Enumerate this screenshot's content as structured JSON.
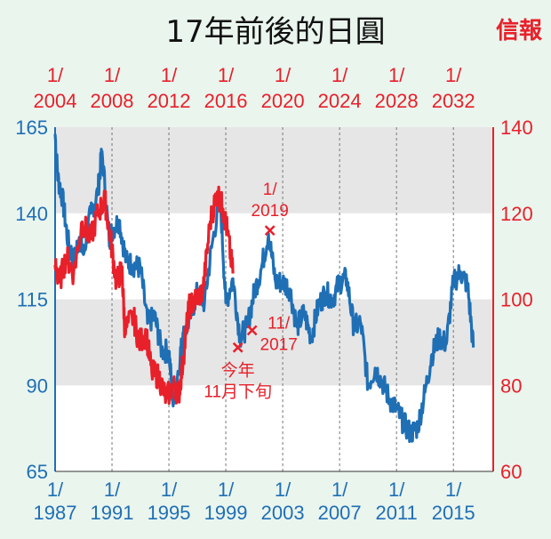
{
  "title": "17年前後的日圓",
  "logo": "信報",
  "colors": {
    "blue": "#1f6fb5",
    "red": "#e8202a",
    "band": "#e6e6e6"
  },
  "chart_data": {
    "type": "line",
    "title": "17年前後的日圓",
    "x_bottom": {
      "range": [
        1987,
        2017.8
      ],
      "ticks": [
        1987,
        1991,
        1995,
        1999,
        2003,
        2007,
        2011,
        2015
      ],
      "tick_prefix": "1/"
    },
    "x_top": {
      "range": [
        2004,
        2034.8
      ],
      "ticks": [
        2004,
        2008,
        2012,
        2016,
        2020,
        2024,
        2028,
        2032
      ],
      "tick_prefix": "1/"
    },
    "y_left": {
      "range": [
        65,
        165
      ],
      "ticks": [
        65,
        90,
        115,
        140,
        165
      ]
    },
    "y_right": {
      "range": [
        60,
        140
      ],
      "ticks": [
        60,
        80,
        100,
        120,
        140
      ]
    },
    "grid": "vertical dashed at ticks, alternating horizontal bands",
    "series": [
      {
        "name": "blue (1987-2016, left axis)",
        "axis": "left/bottom",
        "color": "blue",
        "x": [
          1987.0,
          1987.2,
          1987.5,
          1987.9,
          1988.3,
          1988.7,
          1989.0,
          1989.5,
          1990.0,
          1990.3,
          1990.8,
          1991.0,
          1991.5,
          1992.0,
          1992.5,
          1993.0,
          1993.5,
          1994.0,
          1994.5,
          1995.0,
          1995.3,
          1995.8,
          1996.0,
          1996.5,
          1997.0,
          1997.5,
          1998.0,
          1998.6,
          1999.0,
          1999.5,
          2000.0,
          2000.5,
          2001.0,
          2001.5,
          2002.0,
          2002.5,
          2003.0,
          2003.5,
          2004.0,
          2004.5,
          2005.0,
          2005.5,
          2006.0,
          2006.5,
          2007.0,
          2007.5,
          2008.0,
          2008.5,
          2009.0,
          2009.5,
          2010.0,
          2010.5,
          2011.0,
          2011.5,
          2012.0,
          2012.5,
          2013.0,
          2013.5,
          2014.0,
          2014.5,
          2015.0,
          2015.5,
          2016.0,
          2016.4
        ],
        "y": [
          163,
          150,
          145,
          132,
          126,
          133,
          128,
          140,
          146,
          158,
          132,
          135,
          138,
          126,
          125,
          124,
          108,
          110,
          100,
          100,
          84,
          99,
          104,
          110,
          117,
          114,
          130,
          145,
          114,
          121,
          104,
          107,
          117,
          124,
          134,
          120,
          120,
          118,
          107,
          111,
          104,
          113,
          117,
          115,
          120,
          121,
          107,
          108,
          90,
          95,
          91,
          86,
          83,
          79,
          76,
          78,
          88,
          99,
          104,
          102,
          120,
          123,
          119,
          101
        ]
      },
      {
        "name": "red (2004-2016, right axis)",
        "axis": "right/top",
        "color": "red",
        "x": [
          2004.0,
          2004.3,
          2004.8,
          2005.3,
          2005.9,
          2006.5,
          2007.0,
          2007.5,
          2007.9,
          2008.3,
          2008.7,
          2008.9,
          2009.5,
          2009.9,
          2010.4,
          2010.8,
          2011.3,
          2011.8,
          2012.3,
          2012.7,
          2013.0,
          2013.4,
          2013.9,
          2014.4,
          2014.9,
          2015.4,
          2015.8,
          2016.1,
          2016.5
        ],
        "y": [
          108,
          104,
          110,
          106,
          118,
          114,
          120,
          123,
          114,
          104,
          107,
          93,
          96,
          90,
          92,
          83,
          82,
          77,
          80,
          78,
          86,
          98,
          100,
          102,
          118,
          125,
          121,
          116,
          106
        ]
      }
    ],
    "annotations": [
      {
        "label_line1": "今年",
        "label_line2": "11月下旬",
        "x_bottom": 1999.85,
        "y_left": 101
      },
      {
        "label_line1": "11/",
        "label_line2": "2017",
        "x_bottom": 2000.85,
        "y_left": 106
      },
      {
        "label_line1": "1/",
        "label_line2": "2019",
        "x_bottom": 2002.1,
        "y_left": 135
      }
    ]
  }
}
